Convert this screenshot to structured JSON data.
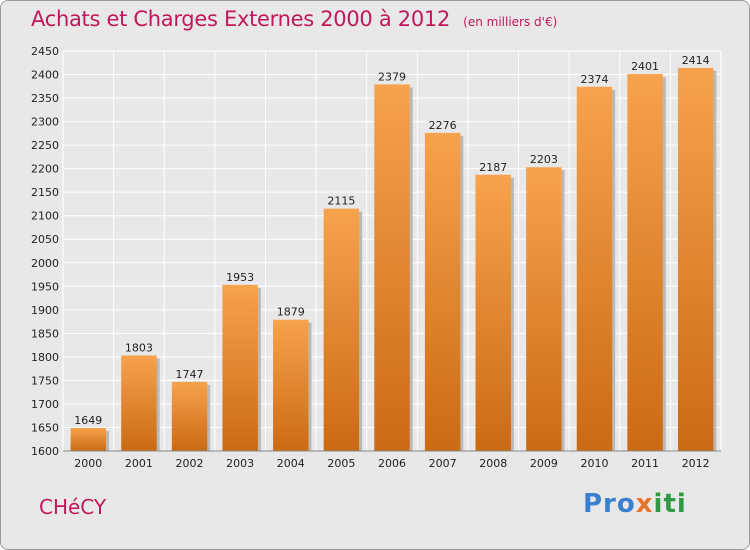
{
  "title": "Achats et Charges Externes 2000 à 2012",
  "subtitle": "(en milliers d'€)",
  "town": "CHéCY",
  "logo": {
    "part1": "Pro",
    "part2": "x",
    "part3": "iti"
  },
  "colors": {
    "accent": "#c2185b",
    "bar_light": "#f7a24c",
    "bar_dark": "#cc6a14",
    "grid": "#ffffff"
  },
  "chart_data": {
    "type": "bar",
    "title": "Achats et Charges Externes 2000 à 2012",
    "ylabel": "",
    "xlabel": "",
    "categories": [
      "2000",
      "2001",
      "2002",
      "2003",
      "2004",
      "2005",
      "2006",
      "2007",
      "2008",
      "2009",
      "2010",
      "2011",
      "2012"
    ],
    "values": [
      1649,
      1803,
      1747,
      1953,
      1879,
      2115,
      2379,
      2276,
      2187,
      2203,
      2374,
      2401,
      2414
    ],
    "ylim": [
      1600,
      2450
    ],
    "yticks": [
      1600,
      1650,
      1700,
      1750,
      1800,
      1850,
      1900,
      1950,
      2000,
      2050,
      2100,
      2150,
      2200,
      2250,
      2300,
      2350,
      2400,
      2450
    ],
    "grid": true,
    "legend": "none"
  }
}
